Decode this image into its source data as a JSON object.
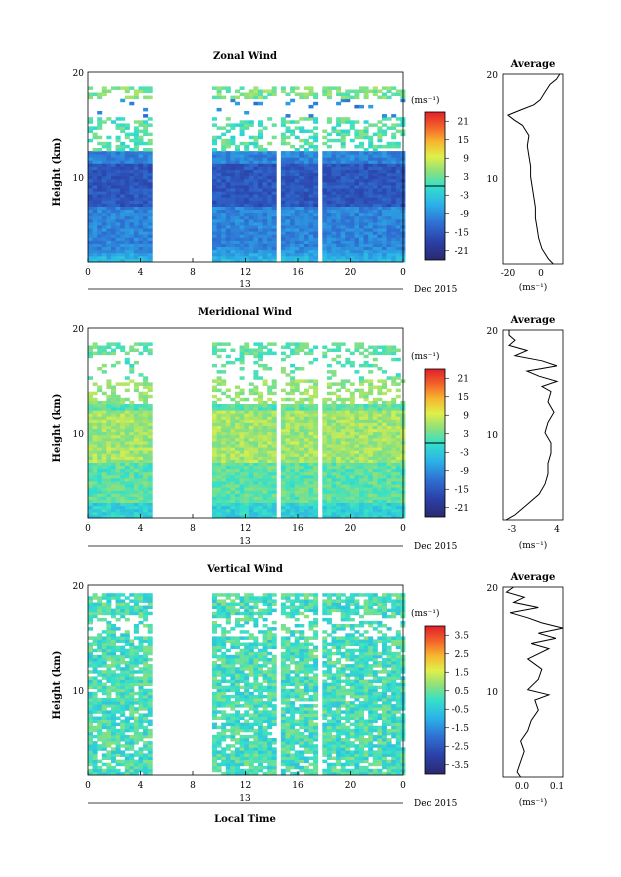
{
  "figure": {
    "xlabel": "Local Time",
    "date_label": "Dec 2015",
    "day_label": "13",
    "unit_label": "(ms⁻¹)",
    "average_title": "Average",
    "ylabel": "Height (km)"
  },
  "chart_data": [
    {
      "type": "heatmap",
      "title": "Zonal Wind",
      "ylabel": "Height (km)",
      "x_ticks": [
        "0",
        "4",
        "8",
        "12",
        "16",
        "20",
        "0"
      ],
      "y_ticks": [
        "20",
        "10"
      ],
      "xlim": [
        0,
        24
      ],
      "ylim": [
        1.5,
        20
      ],
      "data_gaps_hours": [
        [
          5,
          9.3
        ],
        [
          14.3,
          14.6
        ],
        [
          17.6,
          17.9
        ]
      ],
      "colorbar": {
        "label": "(ms⁻¹)",
        "ticks": [
          "21",
          "15",
          "9",
          "3",
          "-3",
          "-9",
          "-15",
          "-21"
        ],
        "range": [
          -24,
          24
        ],
        "zero_line": true
      },
      "profile": {
        "title": "Average",
        "x_ticks": [
          "-20",
          "0"
        ],
        "y_ticks": [
          "20",
          "10"
        ],
        "xlim": [
          -25,
          12
        ],
        "height_km": [
          1.5,
          2,
          3,
          4,
          5,
          6,
          7,
          8,
          9,
          10,
          11,
          12,
          13,
          14,
          14.5,
          15,
          15.5,
          16,
          16.5,
          17,
          17.5,
          18,
          18.5,
          19,
          19.5,
          20
        ],
        "values": [
          6,
          3,
          -1,
          -3,
          -4,
          -5,
          -5,
          -6,
          -7,
          -8,
          -8,
          -9,
          -10,
          -9,
          -11,
          -13,
          -18,
          -22,
          -14,
          -6,
          -2,
          0,
          2,
          4,
          8,
          10
        ]
      }
    },
    {
      "type": "heatmap",
      "title": "Meridional Wind",
      "ylabel": "Height (km)",
      "x_ticks": [
        "0",
        "4",
        "8",
        "12",
        "16",
        "20",
        "0"
      ],
      "y_ticks": [
        "20",
        "10"
      ],
      "xlim": [
        0,
        24
      ],
      "ylim": [
        1.5,
        20
      ],
      "data_gaps_hours": [
        [
          5,
          9.3
        ],
        [
          14.3,
          14.6
        ],
        [
          17.6,
          17.9
        ]
      ],
      "colorbar": {
        "label": "(ms⁻¹)",
        "ticks": [
          "21",
          "15",
          "9",
          "3",
          "-3",
          "-9",
          "-15",
          "-21"
        ],
        "range": [
          -24,
          24
        ],
        "zero_line": true
      },
      "profile": {
        "title": "Average",
        "x_ticks": [
          "-3",
          "4"
        ],
        "y_ticks": [
          "20",
          "10"
        ],
        "xlim": [
          -5,
          5
        ],
        "height_km": [
          1.5,
          2,
          3,
          4,
          5,
          6,
          7,
          8,
          9,
          10,
          11,
          12,
          13,
          14,
          14.5,
          15,
          15.5,
          16,
          16.5,
          17,
          17.5,
          18,
          18.5,
          19,
          19.5,
          20
        ],
        "values": [
          -4.5,
          -3,
          -1,
          1,
          2,
          2.5,
          2.5,
          3,
          3,
          2,
          2.5,
          3.5,
          2.5,
          3,
          1.5,
          4,
          1,
          -1,
          4,
          1.5,
          -3,
          -1,
          -4,
          -3,
          -4,
          -4
        ]
      }
    },
    {
      "type": "heatmap",
      "title": "Vertical Wind",
      "ylabel": "Height (km)",
      "xlabel": "Local Time",
      "x_ticks": [
        "0",
        "4",
        "8",
        "12",
        "16",
        "20",
        "0"
      ],
      "y_ticks": [
        "20",
        "10"
      ],
      "xlim": [
        0,
        24
      ],
      "ylim": [
        1.5,
        20
      ],
      "data_gaps_hours": [
        [
          5,
          9.3
        ],
        [
          14.3,
          14.6
        ],
        [
          17.6,
          17.9
        ]
      ],
      "colorbar": {
        "label": "(ms⁻¹)",
        "ticks": [
          "3.5",
          "2.5",
          "1.5",
          "0.5",
          "-0.5",
          "-1.5",
          "-2.5",
          "-3.5"
        ],
        "range": [
          -4,
          4
        ],
        "zero_line": false
      },
      "profile": {
        "title": "Average",
        "x_ticks": [
          "0.0",
          "0.1"
        ],
        "y_ticks": [
          "20",
          "10"
        ],
        "xlim": [
          -0.05,
          0.12
        ],
        "height_km": [
          1.5,
          2,
          3,
          4,
          5,
          6,
          7,
          8,
          9,
          9.5,
          10,
          11,
          12,
          13,
          14,
          14.5,
          15,
          15.5,
          16,
          16.5,
          17,
          17.5,
          18,
          18.5,
          19,
          19.5,
          20
        ],
        "values": [
          0.0,
          -0.01,
          0.0,
          0.01,
          0.0,
          0.02,
          0.03,
          0.05,
          0.04,
          0.08,
          0.02,
          0.05,
          0.06,
          0.02,
          0.08,
          0.03,
          0.1,
          0.05,
          0.12,
          0.06,
          0.02,
          -0.03,
          0.05,
          -0.02,
          0.01,
          -0.04,
          -0.02
        ]
      }
    }
  ]
}
